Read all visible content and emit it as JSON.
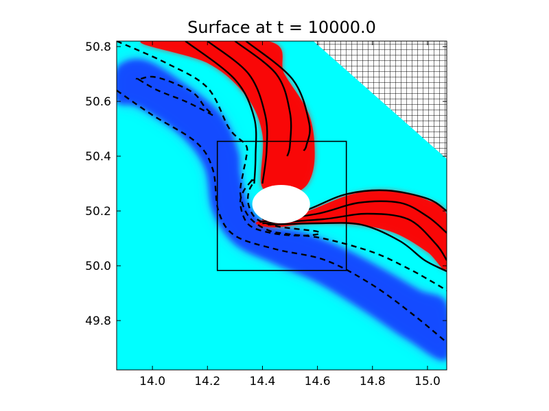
{
  "chart_data": {
    "type": "heatmap",
    "title": "Surface at t =  10000.0",
    "xlabel": "",
    "ylabel": "",
    "xlim": [
      13.87,
      15.07
    ],
    "ylim": [
      49.62,
      50.82
    ],
    "xticks": [
      14.0,
      14.2,
      14.4,
      14.6,
      14.8,
      15.0
    ],
    "xtick_labels": [
      "14.0",
      "14.2",
      "14.4",
      "14.6",
      "14.8",
      "15.0"
    ],
    "yticks": [
      49.8,
      50.0,
      50.2,
      50.4,
      50.6,
      50.8
    ],
    "ytick_labels": [
      "49.8",
      "50.0",
      "50.2",
      "50.4",
      "50.6",
      "50.8"
    ],
    "colormap": {
      "background": "#00ffff",
      "positive": "#ff0000",
      "negative": "#0000ff"
    },
    "obstacle": {
      "center": [
        14.468,
        50.225
      ],
      "rx": 0.105,
      "ry": 0.07,
      "color": "#ffffff"
    },
    "land_region_corner": [
      [
        14.5855,
        50.82
      ],
      [
        15.07,
        50.82
      ],
      [
        15.07,
        50.39
      ]
    ],
    "zoom_box": {
      "x": [
        14.236,
        14.705
      ],
      "y": [
        49.983,
        50.454
      ]
    },
    "positive_band": [
      [
        [
          13.96,
          50.82
        ],
        [
          14.2,
          50.74
        ],
        [
          14.34,
          50.62
        ],
        [
          14.4,
          50.48
        ],
        [
          14.395,
          50.3
        ],
        [
          14.44,
          50.27
        ],
        [
          14.5,
          50.26
        ],
        [
          14.565,
          50.3
        ],
        [
          14.59,
          50.4
        ],
        [
          14.57,
          50.55
        ],
        [
          14.48,
          50.7
        ],
        [
          14.42,
          50.82
        ]
      ],
      [
        [
          14.38,
          50.16
        ],
        [
          14.55,
          50.195
        ],
        [
          14.72,
          50.26
        ],
        [
          14.86,
          50.275
        ],
        [
          15.0,
          50.24
        ],
        [
          15.07,
          50.185
        ],
        [
          15.07,
          49.99
        ],
        [
          15.0,
          50.05
        ],
        [
          14.88,
          50.12
        ],
        [
          14.74,
          50.15
        ],
        [
          14.58,
          50.155
        ],
        [
          14.44,
          50.14
        ]
      ]
    ],
    "negative_band": [
      [
        [
          13.87,
          50.72
        ],
        [
          13.97,
          50.75
        ],
        [
          14.12,
          50.66
        ],
        [
          14.25,
          50.55
        ],
        [
          14.31,
          50.42
        ],
        [
          14.32,
          50.33
        ],
        [
          14.35,
          50.22
        ],
        [
          14.42,
          50.15
        ],
        [
          14.55,
          50.12
        ],
        [
          14.7,
          50.06
        ],
        [
          14.85,
          49.98
        ],
        [
          14.97,
          49.91
        ],
        [
          15.07,
          49.86
        ],
        [
          15.07,
          49.66
        ],
        [
          14.93,
          49.73
        ],
        [
          14.78,
          49.83
        ],
        [
          14.6,
          49.94
        ],
        [
          14.44,
          50.01
        ],
        [
          14.3,
          50.08
        ],
        [
          14.22,
          50.2
        ],
        [
          14.19,
          50.36
        ],
        [
          14.1,
          50.48
        ],
        [
          13.95,
          50.58
        ],
        [
          13.87,
          50.6
        ]
      ]
    ],
    "contours_solid": [
      [
        [
          14.12,
          50.82
        ],
        [
          14.3,
          50.68
        ],
        [
          14.37,
          50.54
        ],
        [
          14.375,
          50.4
        ],
        [
          14.37,
          50.3
        ]
      ],
      [
        [
          14.2,
          50.82
        ],
        [
          14.35,
          50.7
        ],
        [
          14.41,
          50.55
        ],
        [
          14.415,
          50.42
        ],
        [
          14.4,
          50.3
        ]
      ],
      [
        [
          14.3,
          50.82
        ],
        [
          14.45,
          50.7
        ],
        [
          14.5,
          50.56
        ],
        [
          14.5,
          50.44
        ],
        [
          14.49,
          50.4
        ]
      ],
      [
        [
          14.34,
          50.82
        ],
        [
          14.51,
          50.68
        ],
        [
          14.57,
          50.52
        ],
        [
          14.56,
          50.44
        ],
        [
          14.55,
          50.42
        ]
      ],
      [
        [
          14.4,
          50.17
        ],
        [
          14.55,
          50.2
        ],
        [
          14.7,
          50.26
        ],
        [
          14.85,
          50.275
        ],
        [
          15.0,
          50.245
        ],
        [
          15.07,
          50.2
        ]
      ],
      [
        [
          14.39,
          50.16
        ],
        [
          14.6,
          50.19
        ],
        [
          14.75,
          50.23
        ],
        [
          14.9,
          50.23
        ],
        [
          15.0,
          50.18
        ],
        [
          15.07,
          50.12
        ]
      ],
      [
        [
          14.4,
          50.155
        ],
        [
          14.62,
          50.17
        ],
        [
          14.78,
          50.19
        ],
        [
          14.93,
          50.17
        ],
        [
          15.03,
          50.08
        ],
        [
          15.07,
          50.02
        ]
      ],
      [
        [
          14.42,
          50.15
        ],
        [
          14.6,
          50.155
        ],
        [
          14.76,
          50.15
        ],
        [
          14.9,
          50.09
        ],
        [
          14.99,
          50.02
        ],
        [
          15.07,
          49.98
        ]
      ]
    ],
    "contours_dashed": [
      [
        [
          13.87,
          50.64
        ],
        [
          14.0,
          50.55
        ],
        [
          14.16,
          50.45
        ],
        [
          14.22,
          50.35
        ],
        [
          14.24,
          50.2
        ],
        [
          14.3,
          50.11
        ],
        [
          14.45,
          50.06
        ],
        [
          14.63,
          50.02
        ],
        [
          14.8,
          49.93
        ],
        [
          14.95,
          49.82
        ],
        [
          15.07,
          49.72
        ]
      ],
      [
        [
          13.87,
          50.82
        ],
        [
          14.05,
          50.74
        ],
        [
          14.2,
          50.65
        ],
        [
          14.28,
          50.5
        ],
        [
          14.34,
          50.44
        ],
        [
          14.34,
          50.39
        ],
        [
          14.33,
          50.34
        ],
        [
          14.32,
          50.26
        ],
        [
          14.35,
          50.18
        ],
        [
          14.42,
          50.13
        ],
        [
          14.5,
          50.115
        ],
        [
          14.62,
          50.1
        ],
        [
          14.8,
          50.05
        ],
        [
          14.93,
          49.99
        ],
        [
          15.02,
          49.94
        ],
        [
          15.07,
          49.91
        ]
      ],
      [
        [
          13.95,
          50.68
        ],
        [
          14.02,
          50.64
        ],
        [
          14.12,
          50.6
        ],
        [
          14.2,
          50.56
        ],
        [
          14.22,
          50.55
        ],
        [
          14.19,
          50.58
        ],
        [
          14.15,
          50.63
        ],
        [
          14.07,
          50.67
        ],
        [
          14.0,
          50.69
        ],
        [
          13.95,
          50.68
        ]
      ],
      [
        [
          14.36,
          50.31
        ],
        [
          14.33,
          50.27
        ],
        [
          14.32,
          50.22
        ],
        [
          14.35,
          50.15
        ],
        [
          14.43,
          50.12
        ],
        [
          14.53,
          50.11
        ],
        [
          14.6,
          50.115
        ],
        [
          14.6,
          50.125
        ],
        [
          14.52,
          50.135
        ],
        [
          14.45,
          50.145
        ],
        [
          14.38,
          50.17
        ],
        [
          14.35,
          50.22
        ],
        [
          14.35,
          50.27
        ],
        [
          14.37,
          50.31
        ],
        [
          14.36,
          50.31
        ]
      ]
    ]
  }
}
